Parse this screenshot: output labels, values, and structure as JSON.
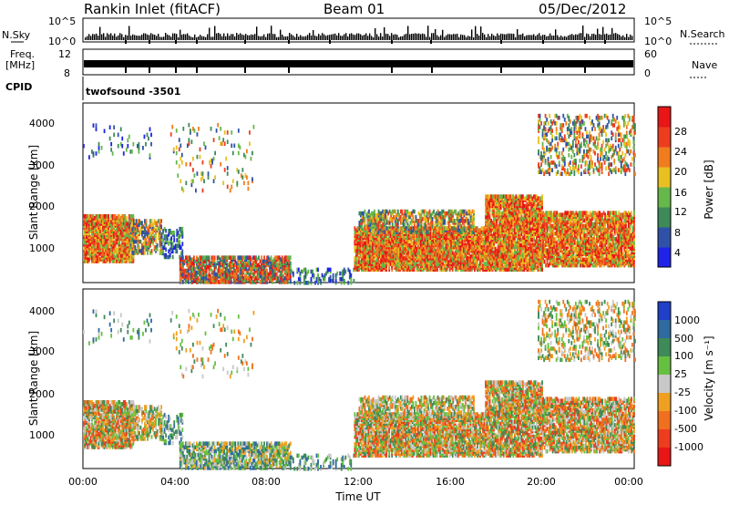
{
  "header": {
    "station": "Rankin Inlet (fitACF)",
    "beam": "Beam 01",
    "date": "05/Dec/2012"
  },
  "status_panels": {
    "nsky_label": "N.Sky",
    "nsky_ticks": [
      "10^5",
      "10^0"
    ],
    "nsearch_label": "N.Search",
    "nsearch_ticks": [
      "10^5",
      "10^0"
    ],
    "freq_label_line1": "Freq.",
    "freq_label_line2": "[MHz]",
    "freq_ticks": [
      "12",
      "8"
    ],
    "nave_label": "Nave",
    "nave_ticks": [
      "60",
      "0"
    ],
    "cpid_label": "CPID",
    "cpid_value": "twofsound  -3501"
  },
  "axes": {
    "x_ticks": [
      "00:00",
      "04:00",
      "08:00",
      "12:00",
      "16:00",
      "20:00",
      "00:00"
    ],
    "x_label": "Time UT",
    "y_ticks": [
      "1000",
      "2000",
      "3000",
      "4000"
    ],
    "y_label": "Slant Range [km]"
  },
  "power_scale": {
    "label": "Power [dB]",
    "ticks": [
      "4",
      "8",
      "12",
      "16",
      "20",
      "24",
      "28"
    ],
    "colors": [
      "#1f22e8",
      "#2f52a8",
      "#3e8a58",
      "#66b84a",
      "#e8c021",
      "#f07c1e",
      "#ec3d1e",
      "#e81616"
    ]
  },
  "velocity_scale": {
    "label": "Velocity  [m s⁻¹]",
    "ticks": [
      "1000",
      "500",
      "100",
      "25",
      "-25",
      "-100",
      "-500",
      "-1000"
    ],
    "colors": [
      "#1f3fc8",
      "#2f6aa0",
      "#3e8a58",
      "#66c040",
      "#c8c8c8",
      "#f0a020",
      "#f07020",
      "#ec3d1e",
      "#e81616"
    ]
  },
  "chart_data": {
    "type": "heatmap",
    "x_range_hours": [
      0,
      24
    ],
    "y_range_km": [
      180,
      4500
    ],
    "panels": [
      {
        "name": "Power",
        "quantity": "dB",
        "range": [
          0,
          30
        ]
      },
      {
        "name": "Velocity",
        "quantity": "m s-1",
        "range": [
          -1000,
          1000
        ]
      }
    ]
  }
}
